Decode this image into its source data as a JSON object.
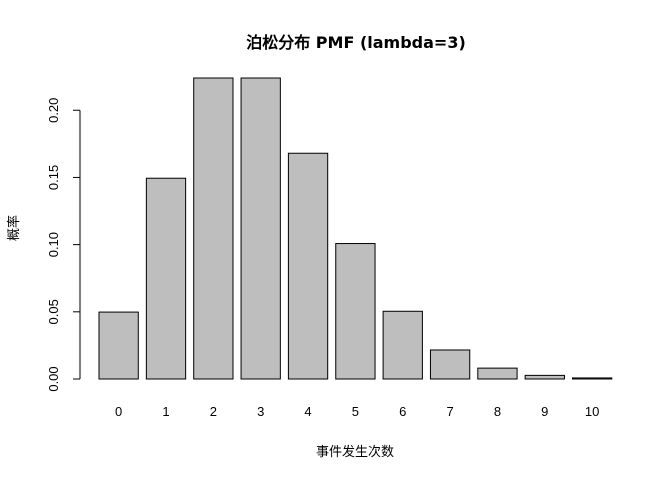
{
  "chart_data": {
    "type": "bar",
    "title": "泊松分布 PMF (lambda=3)",
    "xlabel": "事件发生次数",
    "ylabel": "概率",
    "categories": [
      "0",
      "1",
      "2",
      "3",
      "4",
      "5",
      "6",
      "7",
      "8",
      "9",
      "10"
    ],
    "values": [
      0.0498,
      0.1494,
      0.224,
      0.224,
      0.168,
      0.1008,
      0.0504,
      0.0216,
      0.0081,
      0.0027,
      0.0008
    ],
    "ylim": [
      0,
      0.224
    ],
    "yticks": [
      0.0,
      0.05,
      0.1,
      0.15,
      0.2
    ],
    "ytick_labels": [
      "0.00",
      "0.05",
      "0.10",
      "0.15",
      "0.20"
    ],
    "bar_color": "#bebebe",
    "bar_border_color": "#000000",
    "grid": false,
    "legend": "none"
  }
}
